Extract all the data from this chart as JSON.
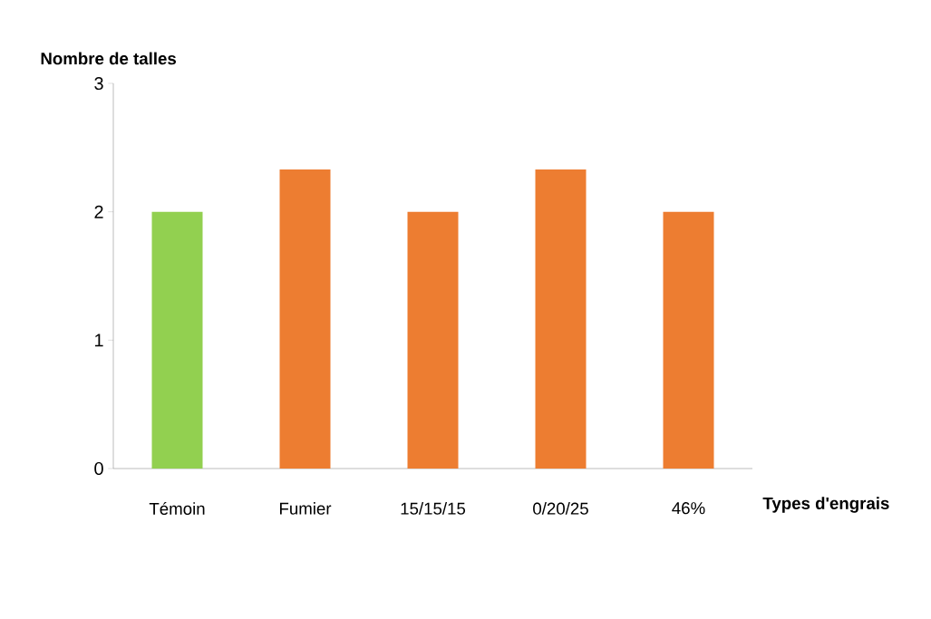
{
  "chart_data": {
    "type": "bar",
    "xlabel": "Types d'engrais",
    "ylabel": "Nombre de talles",
    "categories": [
      "Témoin",
      "Fumier",
      "15/15/15",
      "0/20/25",
      "46%"
    ],
    "values": [
      2,
      2.33,
      2,
      2.33,
      2
    ],
    "colors": [
      "#92d050",
      "#ed7d31",
      "#ed7d31",
      "#ed7d31",
      "#ed7d31"
    ],
    "ylim": [
      0,
      3
    ],
    "yticks": [
      0,
      1,
      2,
      3
    ],
    "grid": false
  }
}
